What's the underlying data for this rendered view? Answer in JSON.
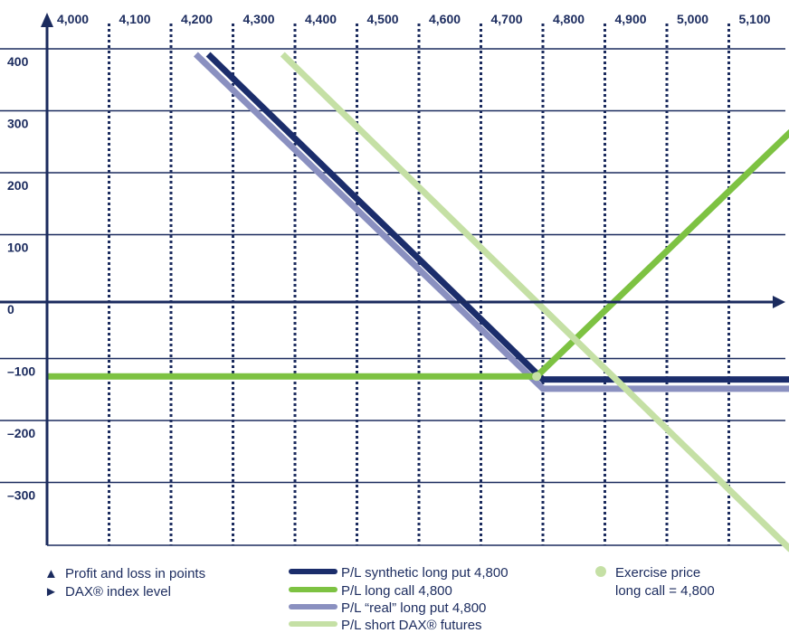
{
  "chart_data": {
    "type": "line",
    "x_tick_labels": [
      "4,000",
      "4,100",
      "4,200",
      "4,300",
      "4,400",
      "4,500",
      "4,600",
      "4,700",
      "4,800",
      "4,900",
      "5,000",
      "5,100"
    ],
    "y_tick_labels": [
      "400",
      "300",
      "200",
      "100",
      "0",
      "–100",
      "–200",
      "–300"
    ],
    "xlim": [
      4000,
      5200
    ],
    "ylim": [
      -400,
      400
    ],
    "grid": true,
    "series": [
      {
        "name": "P/L “real” long put 4,800",
        "color": "#8a90c0",
        "points": [
          [
            4240,
            400
          ],
          [
            4800,
            -140
          ],
          [
            5200,
            -140
          ]
        ]
      },
      {
        "name": "P/L synthetic long put 4,800",
        "color": "#1b2d6b",
        "points": [
          [
            4260,
            400
          ],
          [
            4800,
            -125
          ],
          [
            5200,
            -125
          ]
        ]
      },
      {
        "name": "P/L long call 4,800",
        "color": "#7dc242",
        "points": [
          [
            4000,
            -120
          ],
          [
            4790,
            -120
          ],
          [
            5200,
            275
          ]
        ]
      },
      {
        "name": "P/L short DAX® futures",
        "color": "#c5e0a5",
        "points": [
          [
            4380,
            400
          ],
          [
            5200,
            -400
          ]
        ]
      }
    ],
    "exercise_point": {
      "x": 4790,
      "y": -120,
      "color": "#c5e0a5"
    },
    "legend": {
      "axis_notes": [
        {
          "symbol": "▲",
          "text": "Profit and loss in points"
        },
        {
          "symbol": "►",
          "text": "DAX® index level"
        }
      ],
      "series_entries": [
        {
          "text": "P/L synthetic long put 4,800",
          "color": "#1b2d6b"
        },
        {
          "text": "P/L long call 4,800",
          "color": "#7dc242"
        },
        {
          "text": "P/L “real” long put 4,800",
          "color": "#8a90c0"
        },
        {
          "text": "P/L short DAX® futures",
          "color": "#c5e0a5"
        }
      ],
      "exercise_lines": [
        "Exercise price",
        "long call = 4,800"
      ]
    }
  }
}
